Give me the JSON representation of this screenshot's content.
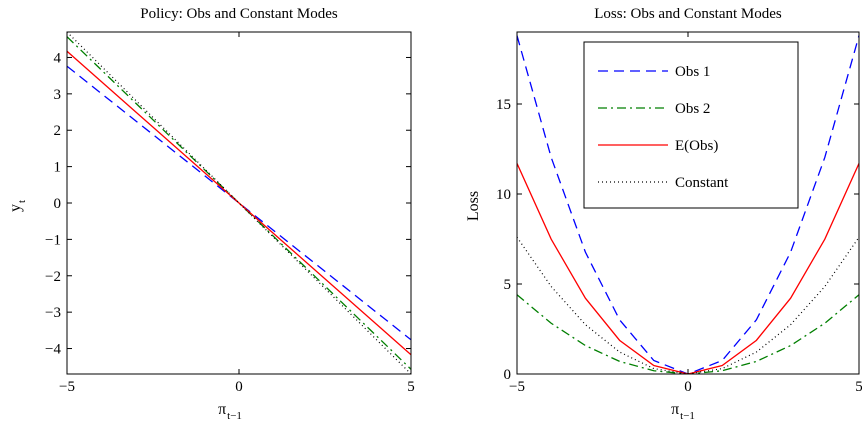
{
  "chart_data": [
    {
      "type": "line",
      "title": "Policy: Obs and Constant Modes",
      "xlabel": "π",
      "xlabel_sub": "t−1",
      "ylabel": "y",
      "ylabel_sub": "t",
      "xlim": [
        -5,
        5
      ],
      "ylim": [
        -4.7,
        4.7
      ],
      "xticks": [
        -5,
        0,
        5
      ],
      "xtick_labels": [
        "−5",
        "0",
        "5"
      ],
      "yticks": [
        -4,
        -3,
        -2,
        -1,
        0,
        1,
        2,
        3,
        4
      ],
      "ytick_labels": [
        "−4",
        "−3",
        "−2",
        "−1",
        "0",
        "1",
        "2",
        "3",
        "4"
      ],
      "grid": false,
      "series": [
        {
          "color": "#0000ff",
          "style": "dashed",
          "x": [
            -5,
            5
          ],
          "y": [
            3.76,
            -3.76
          ]
        },
        {
          "color": "#007f00",
          "style": "dashdot",
          "x": [
            -5,
            5
          ],
          "y": [
            4.57,
            -4.57
          ]
        },
        {
          "color": "#ff0000",
          "style": "solid",
          "x": [
            -5,
            5
          ],
          "y": [
            4.17,
            -4.17
          ]
        },
        {
          "color": "#000000",
          "style": "dotted",
          "x": [
            -5,
            5
          ],
          "y": [
            4.7,
            -4.7
          ]
        }
      ]
    },
    {
      "type": "line",
      "title": "Loss: Obs and Constant Modes",
      "xlabel": "π",
      "xlabel_sub": "t−1",
      "ylabel": "Loss",
      "xlim": [
        -5,
        5
      ],
      "ylim": [
        0,
        19
      ],
      "xticks": [
        -5,
        0,
        5
      ],
      "xtick_labels": [
        "−5",
        "0",
        "5"
      ],
      "yticks": [
        0,
        5,
        10,
        15
      ],
      "ytick_labels": [
        "0",
        "5",
        "10",
        "15"
      ],
      "grid": false,
      "legend_position": "top-right",
      "series": [
        {
          "name": "Obs 1",
          "color": "#0000ff",
          "style": "dashed",
          "x": [
            -5,
            -4,
            -3,
            -2,
            -1,
            0,
            1,
            2,
            3,
            4,
            5
          ],
          "y": [
            18.8,
            12.03,
            6.77,
            3.01,
            0.75,
            0,
            0.75,
            3.01,
            6.77,
            12.03,
            18.8
          ]
        },
        {
          "name": "Obs 2",
          "color": "#007f00",
          "style": "dashdot",
          "x": [
            -5,
            -4,
            -3,
            -2,
            -1,
            0,
            1,
            2,
            3,
            4,
            5
          ],
          "y": [
            4.4,
            2.82,
            1.58,
            0.7,
            0.18,
            0,
            0.18,
            0.7,
            1.58,
            2.82,
            4.4
          ]
        },
        {
          "name": "E(Obs)",
          "color": "#ff0000",
          "style": "solid",
          "x": [
            -5,
            -4,
            -3,
            -2,
            -1,
            0,
            1,
            2,
            3,
            4,
            5
          ],
          "y": [
            11.7,
            7.49,
            4.21,
            1.87,
            0.47,
            0,
            0.47,
            1.87,
            4.21,
            7.49,
            11.7
          ]
        },
        {
          "name": "Constant",
          "color": "#000000",
          "style": "dotted",
          "x": [
            -5,
            -4,
            -3,
            -2,
            -1,
            0,
            1,
            2,
            3,
            4,
            5
          ],
          "y": [
            7.6,
            4.86,
            2.74,
            1.22,
            0.3,
            0,
            0.3,
            1.22,
            2.74,
            4.86,
            7.6
          ]
        }
      ]
    }
  ]
}
